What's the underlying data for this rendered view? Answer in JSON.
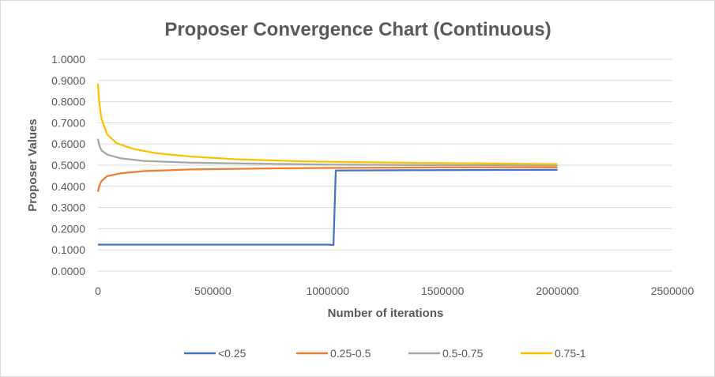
{
  "chart_data": {
    "type": "line",
    "title": "Proposer Convergence Chart (Continuous)",
    "xlabel": "Number of iterations",
    "ylabel": "Proposer Values",
    "xlim": [
      0,
      2500000
    ],
    "ylim": [
      0,
      1
    ],
    "x_ticks": [
      "0",
      "500000",
      "1000000",
      "1500000",
      "2000000",
      "2500000"
    ],
    "y_ticks": [
      "0.0000",
      "0.1000",
      "0.2000",
      "0.3000",
      "0.4000",
      "0.5000",
      "0.6000",
      "0.7000",
      "0.8000",
      "0.9000",
      "1.0000"
    ],
    "grid": "horizontal",
    "legend_position": "bottom",
    "series": [
      {
        "name": "<0.25",
        "color": "#4472c4",
        "points": [
          [
            0,
            0.125
          ],
          [
            1000000,
            0.125
          ],
          [
            1025000,
            0.123
          ],
          [
            1035000,
            0.475
          ],
          [
            1500000,
            0.477
          ],
          [
            2000000,
            0.478
          ]
        ]
      },
      {
        "name": "0.25-0.5",
        "color": "#ed7d31",
        "points": [
          [
            0,
            0.375
          ],
          [
            5000,
            0.4
          ],
          [
            15000,
            0.425
          ],
          [
            40000,
            0.448
          ],
          [
            100000,
            0.462
          ],
          [
            200000,
            0.472
          ],
          [
            400000,
            0.48
          ],
          [
            700000,
            0.484
          ],
          [
            1000000,
            0.487
          ],
          [
            1500000,
            0.489
          ],
          [
            2000000,
            0.49
          ]
        ]
      },
      {
        "name": "0.5-0.75",
        "color": "#a5a5a5",
        "points": [
          [
            0,
            0.625
          ],
          [
            5000,
            0.595
          ],
          [
            15000,
            0.57
          ],
          [
            40000,
            0.55
          ],
          [
            100000,
            0.532
          ],
          [
            200000,
            0.52
          ],
          [
            400000,
            0.512
          ],
          [
            700000,
            0.507
          ],
          [
            1000000,
            0.503
          ],
          [
            1500000,
            0.5
          ],
          [
            2000000,
            0.499
          ]
        ]
      },
      {
        "name": "0.75-1",
        "color": "#ffc000",
        "points": [
          [
            0,
            0.885
          ],
          [
            5000,
            0.8
          ],
          [
            15000,
            0.72
          ],
          [
            40000,
            0.645
          ],
          [
            80000,
            0.605
          ],
          [
            150000,
            0.578
          ],
          [
            250000,
            0.557
          ],
          [
            400000,
            0.541
          ],
          [
            600000,
            0.528
          ],
          [
            900000,
            0.518
          ],
          [
            1300000,
            0.512
          ],
          [
            2000000,
            0.505
          ]
        ]
      }
    ]
  }
}
